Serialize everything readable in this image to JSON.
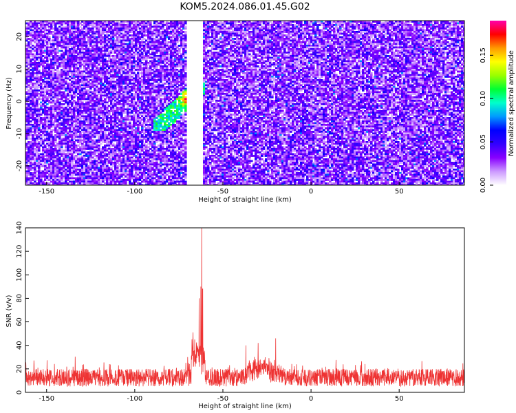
{
  "title": "KOM5.2024.086.01.45.G02",
  "chart_data": [
    {
      "type": "heatmap",
      "xlabel": "Height of straight line (km)",
      "ylabel": "Frequency (Hz)",
      "xlim": [
        -162,
        87
      ],
      "ylim": [
        -26,
        25
      ],
      "xticks": [
        -150,
        -100,
        -50,
        0,
        50
      ],
      "yticks": [
        -20,
        -10,
        0,
        10,
        20
      ],
      "gap_x": [
        -71,
        -62
      ],
      "signal_region": {
        "x": [
          -90,
          -61
        ],
        "y": [
          -9,
          6
        ],
        "peak": 0.18,
        "peak_at": [
          -69,
          1
        ]
      },
      "colorbar": {
        "label": "Normalized spectral amplitude",
        "range": [
          0,
          0.19
        ],
        "ticks": [
          0.0,
          0.05,
          0.1,
          0.15
        ],
        "tick_labels": [
          "0.00",
          "0.05",
          "0.10",
          "0.15"
        ],
        "colormap": [
          "#ffffff",
          "#cc99ff",
          "#8800ff",
          "#3300ff",
          "#0000ff",
          "#0099ff",
          "#00ffcc",
          "#00ff33",
          "#99ff00",
          "#ffff00",
          "#ff9900",
          "#ff0000",
          "#ff00aa"
        ]
      },
      "background_level": [
        0.01,
        0.05
      ],
      "grid": false
    },
    {
      "type": "line",
      "xlabel": "Height of straight line (km)",
      "ylabel": "SNR (v/v)",
      "xlim": [
        -162,
        87
      ],
      "ylim": [
        0,
        140
      ],
      "xticks": [
        -150,
        -100,
        -50,
        0,
        50
      ],
      "yticks": [
        0,
        20,
        40,
        60,
        80,
        100,
        120,
        140
      ],
      "color": "#ee3333",
      "baseline_range": [
        5,
        20
      ],
      "features": [
        {
          "x": -63.5,
          "y": 80
        },
        {
          "x": -62.5,
          "y": 90
        },
        {
          "x": -62,
          "y": 140
        },
        {
          "x": -61.5,
          "y": 88
        },
        {
          "x": -66,
          "y": 45
        },
        {
          "x": -70,
          "y": 30
        },
        {
          "x": -20,
          "y": 46
        },
        {
          "x": -30,
          "y": 42
        },
        {
          "x": -37,
          "y": 40
        }
      ],
      "grid": false
    }
  ]
}
